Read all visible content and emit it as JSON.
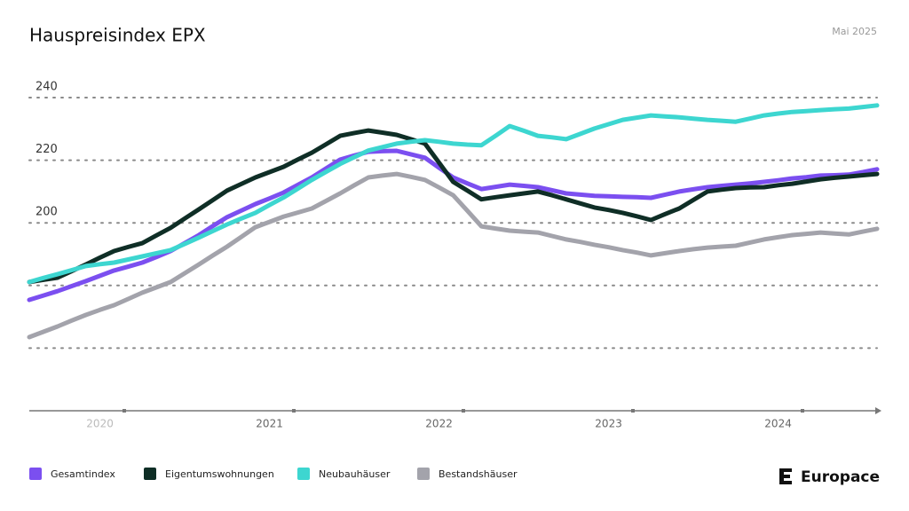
{
  "chart_data": {
    "type": "line",
    "title": "Hauspreisindex EPX",
    "subtitle": "Mai 2025",
    "brand": "Europace",
    "categories": [
      null,
      null,
      null,
      null,
      null,
      "2020",
      null,
      null,
      null,
      null,
      null,
      null,
      null,
      null,
      null,
      null,
      null,
      "2021",
      null,
      null,
      null,
      null,
      null,
      null,
      null,
      null,
      null,
      null,
      null,
      "2022",
      null,
      null,
      null,
      null,
      null,
      null,
      null,
      null,
      null,
      null,
      null,
      "2023",
      null,
      null,
      null,
      null,
      null,
      null,
      null,
      null,
      null,
      null,
      null,
      "2024",
      null,
      null,
      null,
      null,
      null,
      null,
      null
    ],
    "series": [
      {
        "name": "Gesamtindex",
        "color": "#7b4ff0",
        "values": [
          175.4,
          176.8,
          178.2,
          179.8,
          181.4,
          183.1,
          184.8,
          186.0,
          187.3,
          189.1,
          191.0,
          193.5,
          196.1,
          199.0,
          201.8,
          203.9,
          206.0,
          207.8,
          209.7,
          212.1,
          214.5,
          217.4,
          220.2,
          221.5,
          222.7,
          222.9,
          223.0,
          221.9,
          220.8,
          217.6,
          214.5,
          212.6,
          210.8,
          211.5,
          212.2,
          211.8,
          211.4,
          210.4,
          209.4,
          209.0,
          208.6,
          208.5,
          208.3,
          208.2,
          208.0,
          209.0,
          210.0,
          210.7,
          211.4,
          211.8,
          212.2,
          212.6,
          213.1,
          213.6,
          214.2,
          214.6,
          215.1,
          215.2,
          215.4,
          216.2,
          217.1
        ]
      },
      {
        "name": "Eigentumswohnungen",
        "color": "#0f2e26",
        "values": [
          181.1,
          181.8,
          182.5,
          184.6,
          186.7,
          188.9,
          191.0,
          192.3,
          193.5,
          196.0,
          198.4,
          201.4,
          204.3,
          207.3,
          210.3,
          212.4,
          214.5,
          216.2,
          217.9,
          220.2,
          222.4,
          225.1,
          227.8,
          228.7,
          229.5,
          228.8,
          228.1,
          226.7,
          225.3,
          219.2,
          213.1,
          210.3,
          207.5,
          208.2,
          208.8,
          209.4,
          210.0,
          208.8,
          207.5,
          206.2,
          204.9,
          204.1,
          203.2,
          202.1,
          200.9,
          202.8,
          204.6,
          207.3,
          210.0,
          210.6,
          211.1,
          211.3,
          211.4,
          212.0,
          212.5,
          213.2,
          213.9,
          214.4,
          214.8,
          215.2,
          215.6
        ]
      },
      {
        "name": "Neubauhäuser",
        "color": "#3dd6d0",
        "values": [
          181.1,
          182.4,
          183.6,
          184.9,
          186.2,
          186.8,
          187.3,
          188.3,
          189.3,
          190.3,
          191.3,
          193.3,
          195.3,
          197.4,
          199.5,
          201.4,
          203.2,
          205.7,
          208.1,
          210.9,
          213.7,
          216.3,
          218.8,
          221.0,
          223.1,
          224.2,
          225.3,
          225.9,
          226.4,
          225.9,
          225.3,
          225.0,
          224.8,
          227.8,
          230.9,
          229.4,
          227.8,
          227.3,
          226.7,
          228.4,
          230.1,
          231.5,
          232.9,
          233.6,
          234.3,
          234.0,
          233.7,
          233.3,
          232.9,
          232.6,
          232.3,
          233.3,
          234.3,
          234.9,
          235.4,
          235.7,
          236.0,
          236.3,
          236.5,
          237.0,
          237.5
        ]
      },
      {
        "name": "Bestandshäuser",
        "color": "#a3a3ab",
        "values": [
          163.5,
          165.2,
          166.9,
          168.8,
          170.6,
          172.2,
          173.7,
          175.7,
          177.7,
          179.4,
          181.1,
          183.9,
          186.7,
          189.6,
          192.4,
          195.5,
          198.6,
          200.3,
          202.0,
          203.3,
          204.6,
          207.0,
          209.4,
          212.0,
          214.5,
          215.1,
          215.6,
          214.7,
          213.7,
          211.3,
          208.8,
          203.9,
          198.9,
          198.2,
          197.5,
          197.2,
          196.9,
          195.8,
          194.7,
          193.9,
          193.0,
          192.2,
          191.3,
          190.5,
          189.6,
          190.3,
          191.0,
          191.6,
          192.1,
          192.4,
          192.7,
          193.7,
          194.7,
          195.4,
          196.1,
          196.5,
          196.9,
          196.6,
          196.3,
          197.2,
          198.1
        ]
      }
    ],
    "ylim": [
      140,
      248
    ],
    "yticks": [
      {
        "value": 160,
        "label": null
      },
      {
        "value": 180,
        "label": null
      },
      200,
      220,
      240
    ],
    "grid": true
  }
}
